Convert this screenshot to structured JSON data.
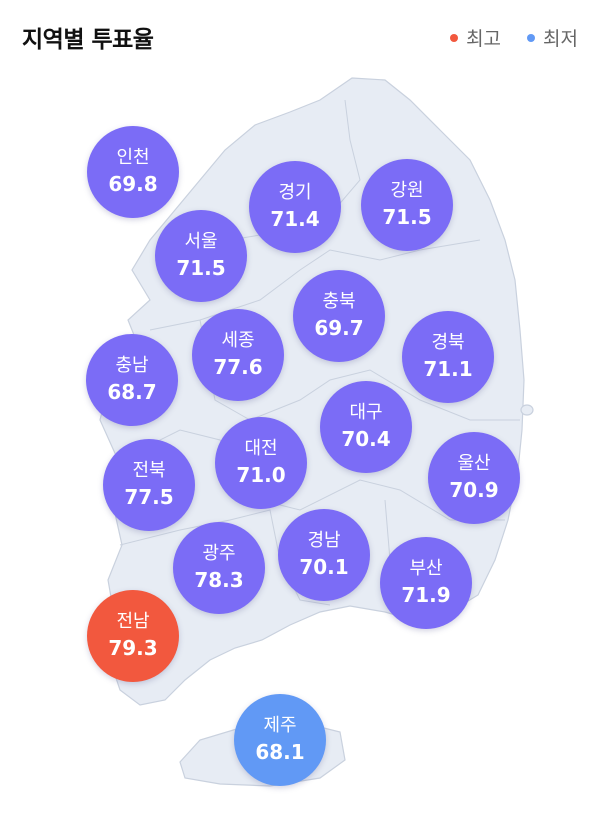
{
  "header": {
    "title": "지역별 투표율"
  },
  "legend": [
    {
      "label": "최고",
      "color": "#f2583e"
    },
    {
      "label": "최저",
      "color": "#6199f5"
    }
  ],
  "colors": {
    "normal": "#7b6cf6",
    "high": "#f2583e",
    "low": "#6199f5",
    "land": "#e7ecf4",
    "border": "#c9d1de"
  },
  "regions": [
    {
      "name": "인천",
      "value": "69.8",
      "level": "normal"
    },
    {
      "name": "경기",
      "value": "71.4",
      "level": "normal"
    },
    {
      "name": "강원",
      "value": "71.5",
      "level": "normal"
    },
    {
      "name": "서울",
      "value": "71.5",
      "level": "normal"
    },
    {
      "name": "충북",
      "value": "69.7",
      "level": "normal"
    },
    {
      "name": "세종",
      "value": "77.6",
      "level": "normal"
    },
    {
      "name": "충남",
      "value": "68.7",
      "level": "normal"
    },
    {
      "name": "경북",
      "value": "71.1",
      "level": "normal"
    },
    {
      "name": "대구",
      "value": "70.4",
      "level": "normal"
    },
    {
      "name": "대전",
      "value": "71.0",
      "level": "normal"
    },
    {
      "name": "울산",
      "value": "70.9",
      "level": "normal"
    },
    {
      "name": "전북",
      "value": "77.5",
      "level": "normal"
    },
    {
      "name": "경남",
      "value": "70.1",
      "level": "normal"
    },
    {
      "name": "광주",
      "value": "78.3",
      "level": "normal"
    },
    {
      "name": "부산",
      "value": "71.9",
      "level": "normal"
    },
    {
      "name": "전남",
      "value": "79.3",
      "level": "high"
    },
    {
      "name": "제주",
      "value": "68.1",
      "level": "low"
    }
  ]
}
